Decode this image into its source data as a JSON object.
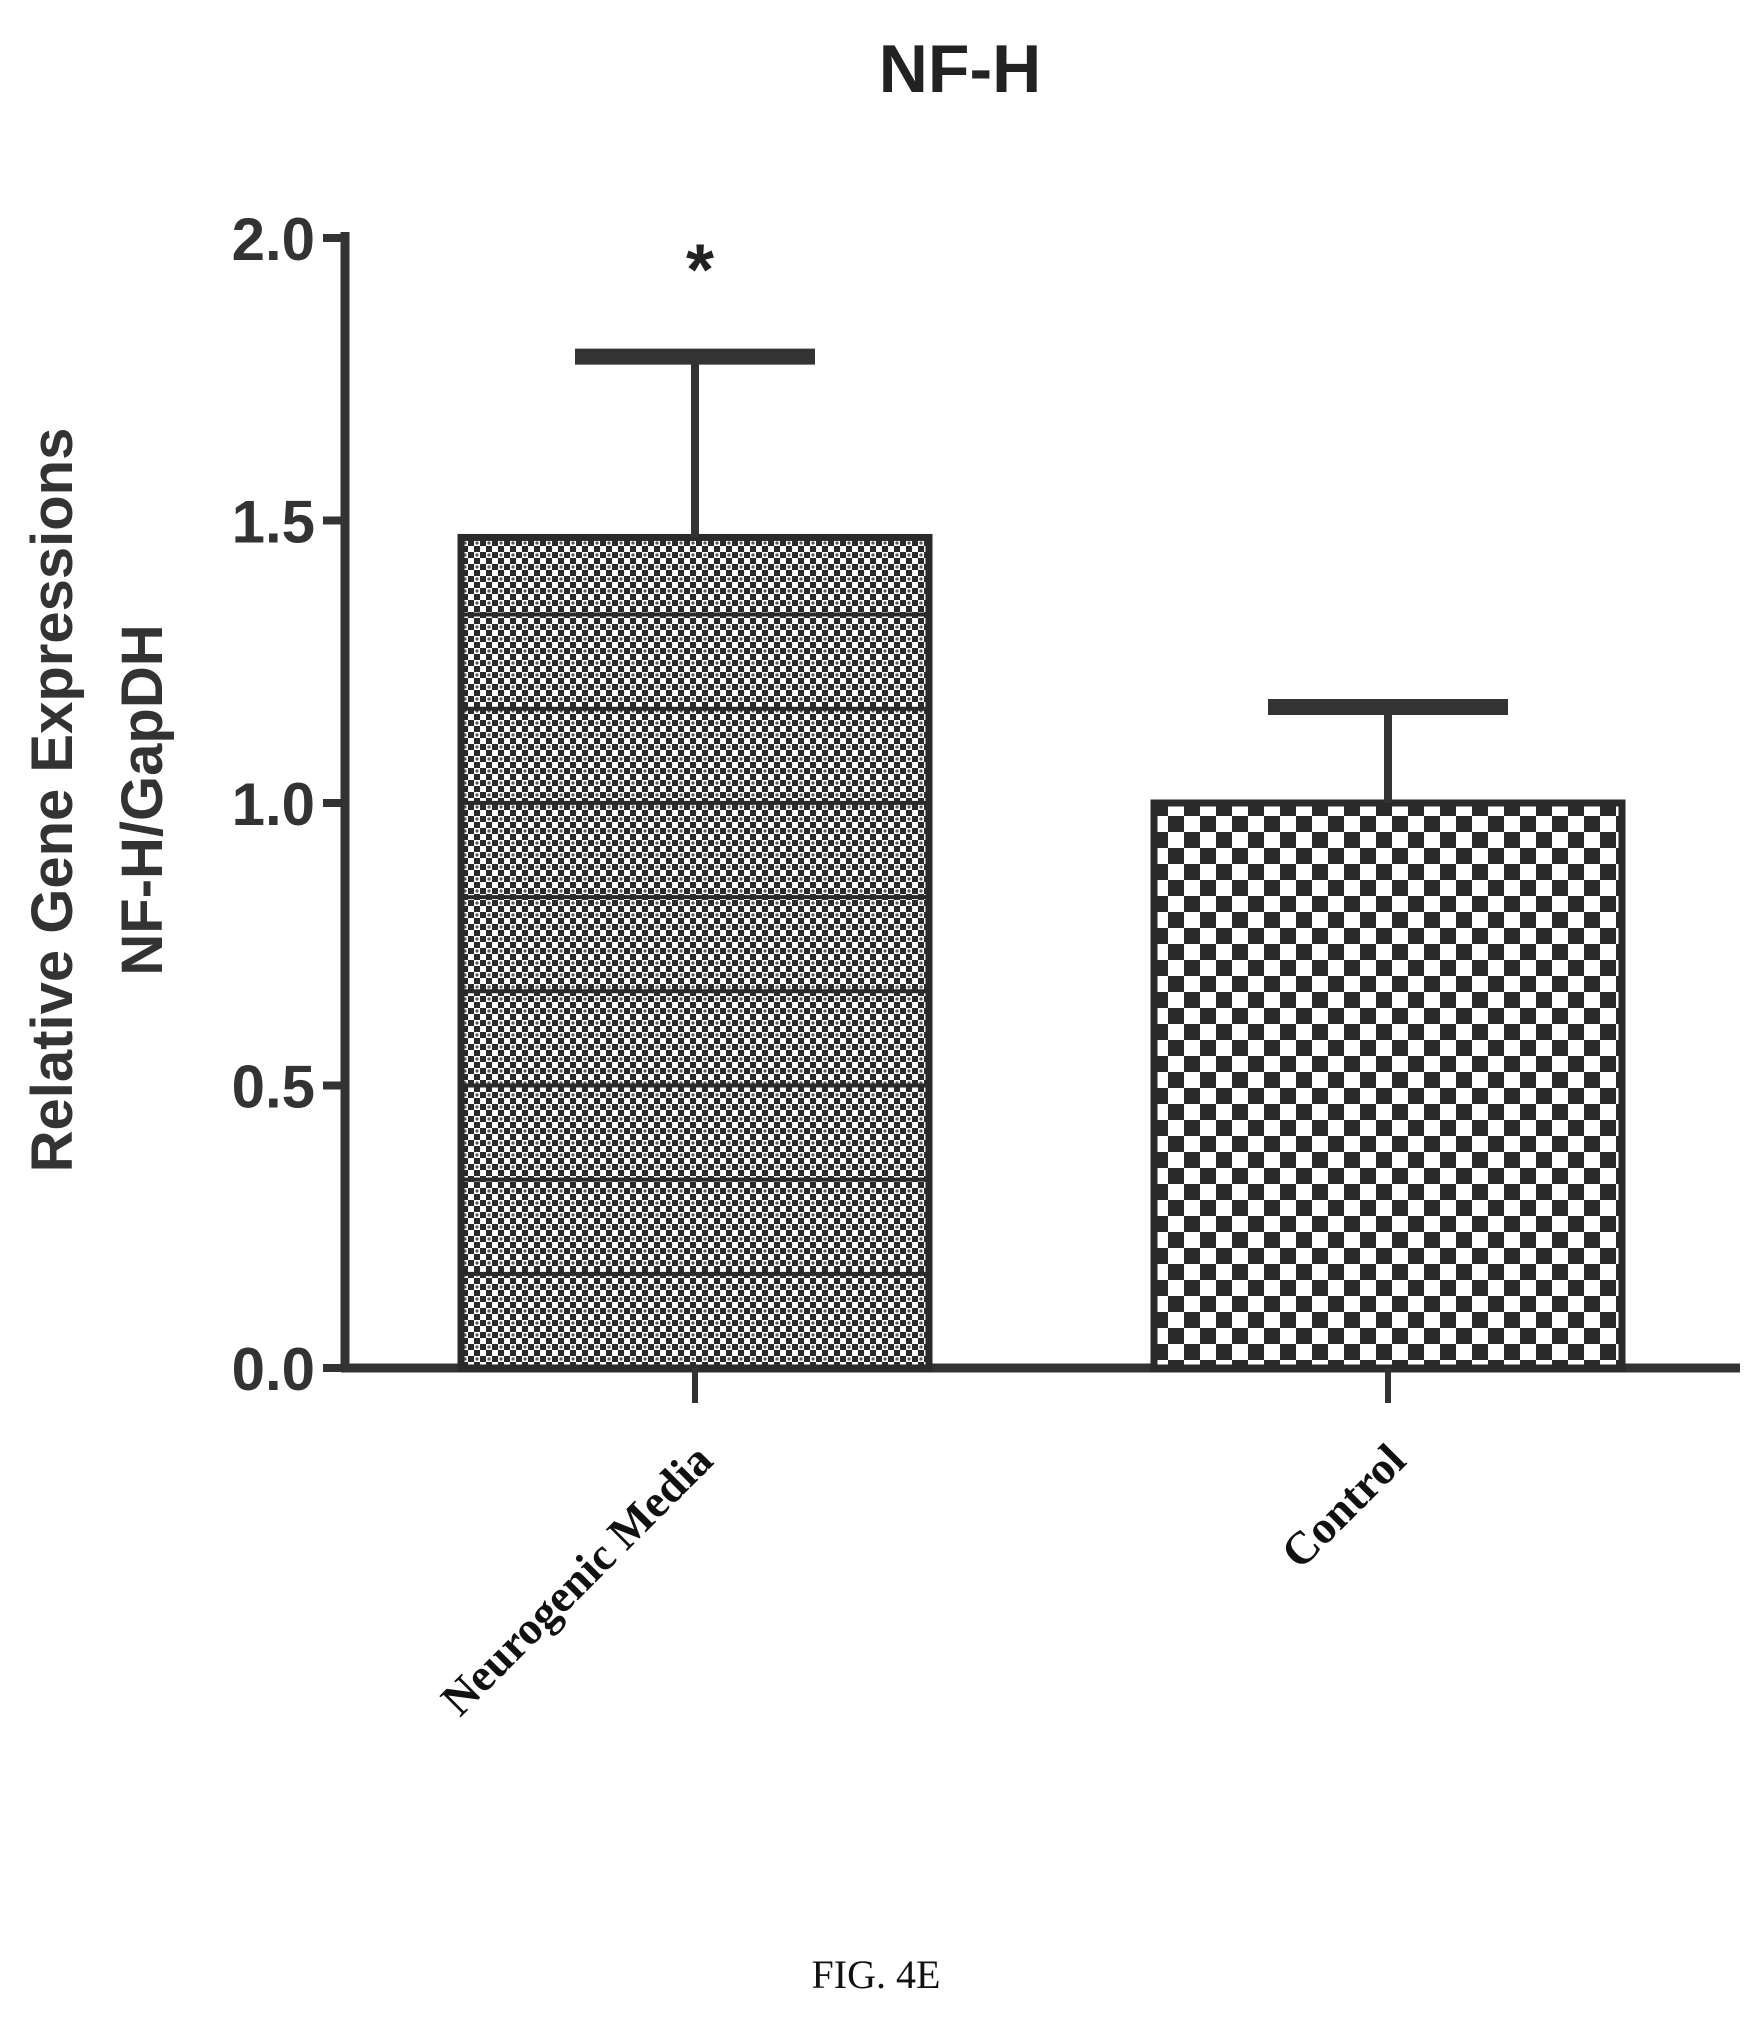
{
  "chart_data": {
    "type": "bar",
    "title": "NF-H",
    "ylabel": [
      "Relative Gene Expressions",
      "NF-H/GapDH"
    ],
    "xlabel": "",
    "categories": [
      "Neurogenic Media",
      "Control"
    ],
    "values": [
      1.47,
      1.0
    ],
    "errors": [
      0.32,
      0.17
    ],
    "significance": [
      "*",
      ""
    ],
    "ylim": [
      0,
      2.0
    ],
    "yticks": [
      "0.0",
      "0.5",
      "1.0",
      "1.5",
      "2.0"
    ],
    "grid": false,
    "legend": "none"
  },
  "caption": "FIG. 4E",
  "colors": {
    "axis": "#333333",
    "pattern_dark": "#2a2a2a",
    "pattern_light": "#ffffff"
  }
}
